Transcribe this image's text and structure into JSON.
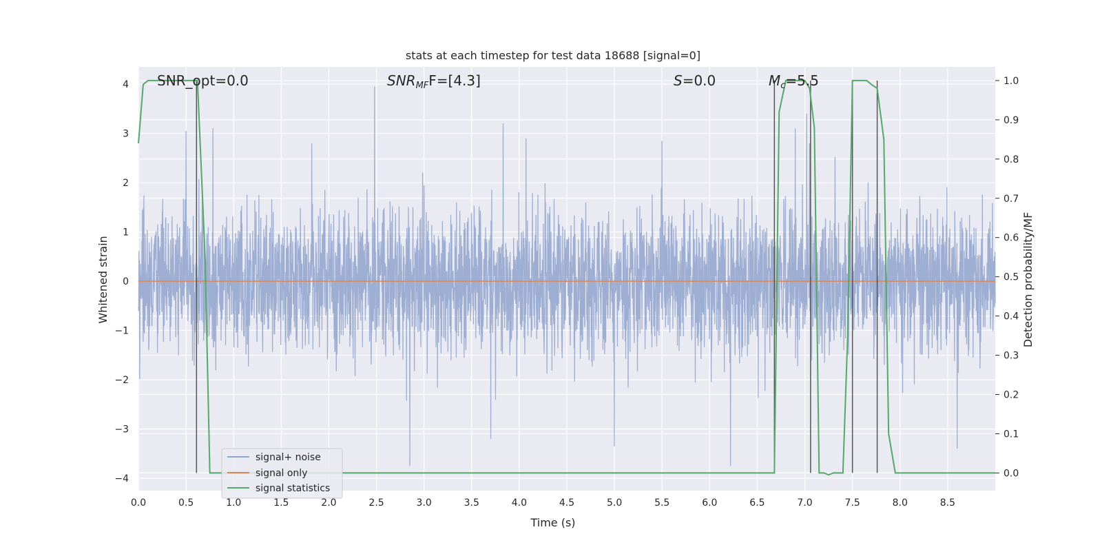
{
  "chart_data": {
    "type": "line",
    "title": "stats at each timestep for test data 18688 [signal=0]",
    "xlabel": "Time (s)",
    "ylabel": "Whitened strain",
    "y2label": "Detection probability/MF",
    "xlim": [
      0.0,
      9.0
    ],
    "ylim": [
      -4.25,
      4.35
    ],
    "y2lim": [
      -0.045,
      1.035
    ],
    "xticks": [
      "0.0",
      "0.5",
      "1.0",
      "1.5",
      "2.0",
      "2.5",
      "3.0",
      "3.5",
      "4.0",
      "4.5",
      "5.0",
      "5.5",
      "6.0",
      "6.5",
      "7.0",
      "7.5",
      "8.0",
      "8.5"
    ],
    "yticks": [
      "4",
      "3",
      "2",
      "1",
      "0",
      "−1",
      "−2",
      "−3",
      "−4"
    ],
    "y2ticks": [
      "1.0",
      "0.9",
      "0.8",
      "0.7",
      "0.6",
      "0.5",
      "0.4",
      "0.3",
      "0.2",
      "0.1",
      "0.0"
    ],
    "grid": true,
    "legend_position": "lower-left",
    "annotations": {
      "snr_opt": "SNR_opt=0.0",
      "snr_mf_main": "SNR",
      "snr_mf_sub": "MF",
      "snr_mf_value": "F=[4.3]",
      "s_symbol": "S",
      "s_value": "=0.0",
      "mc_symbol": "M",
      "mc_sub": "c",
      "mc_value": "=5.5"
    },
    "series": [
      {
        "name": "signal+ noise",
        "color": "#8fa3cc",
        "description_values": "whitened noise, approximately Gaussian, std ~0.7",
        "peaks": [
          [
            0.5,
            3.05
          ],
          [
            2.48,
            3.95
          ],
          [
            3.83,
            3.2
          ],
          [
            4.07,
            2.9
          ],
          [
            2.85,
            -3.75
          ],
          [
            5.5,
            2.85
          ],
          [
            7.02,
            3.4
          ],
          [
            7.05,
            2.8
          ],
          [
            5.0,
            -3.35
          ],
          [
            6.22,
            -3.75
          ],
          [
            8.6,
            -3.4
          ],
          [
            3.7,
            -3.2
          ],
          [
            1.82,
            2.8
          ],
          [
            6.9,
            3.1
          ]
        ]
      },
      {
        "name": "signal only",
        "color": "#dd8452",
        "x": [
          0.0,
          9.0
        ],
        "y": [
          0.0,
          0.0
        ]
      },
      {
        "name": "signal statistics",
        "color": "#55a868",
        "x": [
          0.0,
          0.05,
          0.1,
          0.15,
          0.2,
          0.25,
          0.3,
          0.35,
          0.4,
          0.45,
          0.5,
          0.55,
          0.6,
          0.62,
          0.7,
          0.75,
          0.8,
          1.0,
          2.0,
          3.0,
          4.0,
          5.0,
          6.0,
          6.68,
          6.73,
          6.8,
          6.85,
          6.9,
          7.0,
          7.05,
          7.1,
          7.15,
          7.2,
          7.25,
          7.3,
          7.4,
          7.45,
          7.5,
          7.55,
          7.6,
          7.65,
          7.7,
          7.76,
          7.83,
          7.88,
          7.95,
          8.0,
          8.5,
          9.0
        ],
        "y": [
          0.84,
          0.99,
          1.0,
          1.0,
          1.0,
          1.0,
          1.0,
          1.0,
          1.0,
          1.0,
          1.0,
          1.0,
          1.0,
          1.0,
          0.55,
          0.0,
          0.0,
          0.0,
          0.0,
          0.0,
          0.0,
          0.0,
          0.0,
          0.0,
          0.92,
          1.0,
          1.0,
          1.0,
          1.0,
          0.98,
          0.88,
          0.0,
          0.0,
          -0.005,
          0.0,
          0.0,
          0.35,
          1.0,
          1.0,
          1.0,
          1.0,
          0.99,
          0.98,
          0.85,
          0.1,
          0.0,
          0.0,
          0.0,
          0.0
        ]
      }
    ],
    "vlines": [
      0.61,
      6.68,
      7.06,
      7.5,
      7.76
    ],
    "vline_color": "#555555"
  }
}
